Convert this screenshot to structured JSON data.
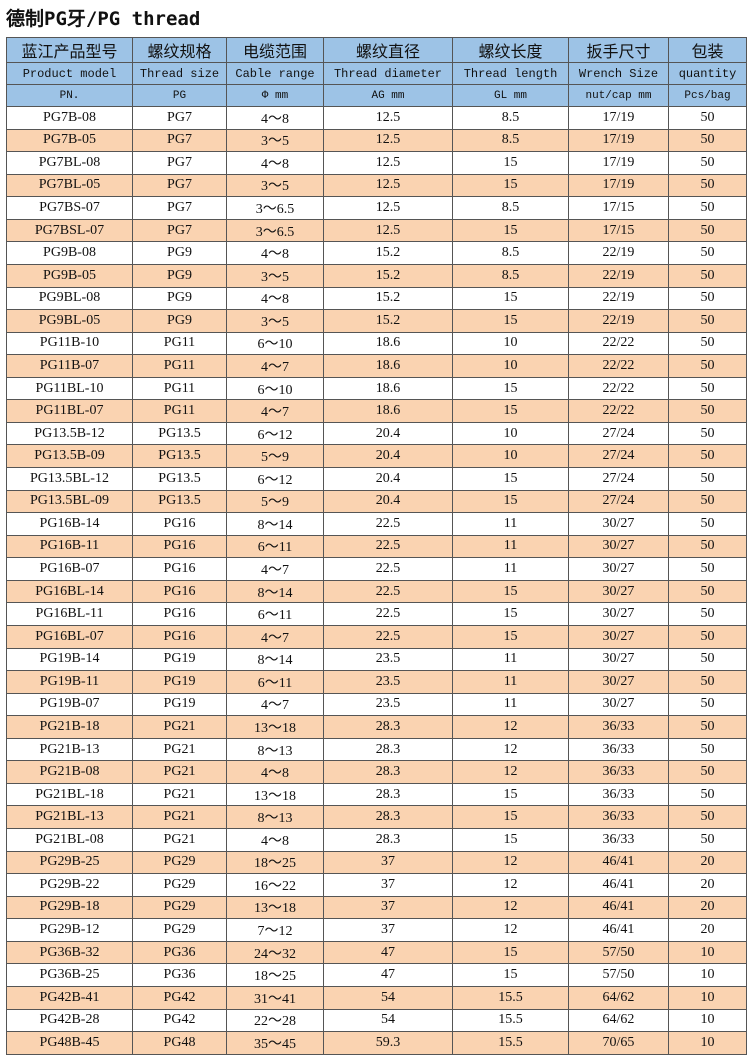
{
  "title": "德制PG牙/PG thread",
  "colors": {
    "header": "#9dc3e6",
    "stripe": "#fad3b1"
  },
  "header_cn": [
    "蓝江产品型号",
    "螺纹规格",
    "电缆范围",
    "螺纹直径",
    "螺纹长度",
    "扳手尺寸",
    "包装"
  ],
  "header_en": [
    "Product model",
    "Thread size",
    "Cable range",
    "Thread diameter",
    "Thread length",
    "Wrench Size",
    "quantity"
  ],
  "header_unit": [
    "PN.",
    "PG",
    "Φ mm",
    "AG mm",
    "GL mm",
    "nut/cap mm",
    "Pcs/bag"
  ],
  "rows": [
    [
      "PG7B-08",
      "PG7",
      "4～8",
      "12.5",
      "8.5",
      "17/19",
      "50"
    ],
    [
      "PG7B-05",
      "PG7",
      "3～5",
      "12.5",
      "8.5",
      "17/19",
      "50"
    ],
    [
      "PG7BL-08",
      "PG7",
      "4～8",
      "12.5",
      "15",
      "17/19",
      "50"
    ],
    [
      "PG7BL-05",
      "PG7",
      "3～5",
      "12.5",
      "15",
      "17/19",
      "50"
    ],
    [
      "PG7BS-07",
      "PG7",
      "3～6.5",
      "12.5",
      "8.5",
      "17/15",
      "50"
    ],
    [
      "PG7BSL-07",
      "PG7",
      "3～6.5",
      "12.5",
      "15",
      "17/15",
      "50"
    ],
    [
      "PG9B-08",
      "PG9",
      "4～8",
      "15.2",
      "8.5",
      "22/19",
      "50"
    ],
    [
      "PG9B-05",
      "PG9",
      "3～5",
      "15.2",
      "8.5",
      "22/19",
      "50"
    ],
    [
      "PG9BL-08",
      "PG9",
      "4～8",
      "15.2",
      "15",
      "22/19",
      "50"
    ],
    [
      "PG9BL-05",
      "PG9",
      "3～5",
      "15.2",
      "15",
      "22/19",
      "50"
    ],
    [
      "PG11B-10",
      "PG11",
      "6～10",
      "18.6",
      "10",
      "22/22",
      "50"
    ],
    [
      "PG11B-07",
      "PG11",
      "4～7",
      "18.6",
      "10",
      "22/22",
      "50"
    ],
    [
      "PG11BL-10",
      "PG11",
      "6～10",
      "18.6",
      "15",
      "22/22",
      "50"
    ],
    [
      "PG11BL-07",
      "PG11",
      "4～7",
      "18.6",
      "15",
      "22/22",
      "50"
    ],
    [
      "PG13.5B-12",
      "PG13.5",
      "6～12",
      "20.4",
      "10",
      "27/24",
      "50"
    ],
    [
      "PG13.5B-09",
      "PG13.5",
      "5～9",
      "20.4",
      "10",
      "27/24",
      "50"
    ],
    [
      "PG13.5BL-12",
      "PG13.5",
      "6～12",
      "20.4",
      "15",
      "27/24",
      "50"
    ],
    [
      "PG13.5BL-09",
      "PG13.5",
      "5～9",
      "20.4",
      "15",
      "27/24",
      "50"
    ],
    [
      "PG16B-14",
      "PG16",
      "8～14",
      "22.5",
      "11",
      "30/27",
      "50"
    ],
    [
      "PG16B-11",
      "PG16",
      "6～11",
      "22.5",
      "11",
      "30/27",
      "50"
    ],
    [
      "PG16B-07",
      "PG16",
      "4～7",
      "22.5",
      "11",
      "30/27",
      "50"
    ],
    [
      "PG16BL-14",
      "PG16",
      "8～14",
      "22.5",
      "15",
      "30/27",
      "50"
    ],
    [
      "PG16BL-11",
      "PG16",
      "6～11",
      "22.5",
      "15",
      "30/27",
      "50"
    ],
    [
      "PG16BL-07",
      "PG16",
      "4～7",
      "22.5",
      "15",
      "30/27",
      "50"
    ],
    [
      "PG19B-14",
      "PG19",
      "8～14",
      "23.5",
      "11",
      "30/27",
      "50"
    ],
    [
      "PG19B-11",
      "PG19",
      "6～11",
      "23.5",
      "11",
      "30/27",
      "50"
    ],
    [
      "PG19B-07",
      "PG19",
      "4～7",
      "23.5",
      "11",
      "30/27",
      "50"
    ],
    [
      "PG21B-18",
      "PG21",
      "13～18",
      "28.3",
      "12",
      "36/33",
      "50"
    ],
    [
      "PG21B-13",
      "PG21",
      "8～13",
      "28.3",
      "12",
      "36/33",
      "50"
    ],
    [
      "PG21B-08",
      "PG21",
      "4～8",
      "28.3",
      "12",
      "36/33",
      "50"
    ],
    [
      "PG21BL-18",
      "PG21",
      "13～18",
      "28.3",
      "15",
      "36/33",
      "50"
    ],
    [
      "PG21BL-13",
      "PG21",
      "8～13",
      "28.3",
      "15",
      "36/33",
      "50"
    ],
    [
      "PG21BL-08",
      "PG21",
      "4～8",
      "28.3",
      "15",
      "36/33",
      "50"
    ],
    [
      "PG29B-25",
      "PG29",
      "18～25",
      "37",
      "12",
      "46/41",
      "20"
    ],
    [
      "PG29B-22",
      "PG29",
      "16～22",
      "37",
      "12",
      "46/41",
      "20"
    ],
    [
      "PG29B-18",
      "PG29",
      "13～18",
      "37",
      "12",
      "46/41",
      "20"
    ],
    [
      "PG29B-12",
      "PG29",
      "7～12",
      "37",
      "12",
      "46/41",
      "20"
    ],
    [
      "PG36B-32",
      "PG36",
      "24～32",
      "47",
      "15",
      "57/50",
      "10"
    ],
    [
      "PG36B-25",
      "PG36",
      "18～25",
      "47",
      "15",
      "57/50",
      "10"
    ],
    [
      "PG42B-41",
      "PG42",
      "31～41",
      "54",
      "15.5",
      "64/62",
      "10"
    ],
    [
      "PG42B-28",
      "PG42",
      "22～28",
      "54",
      "15.5",
      "64/62",
      "10"
    ],
    [
      "PG48B-45",
      "PG48",
      "35～45",
      "59.3",
      "15.5",
      "70/65",
      "10"
    ]
  ]
}
